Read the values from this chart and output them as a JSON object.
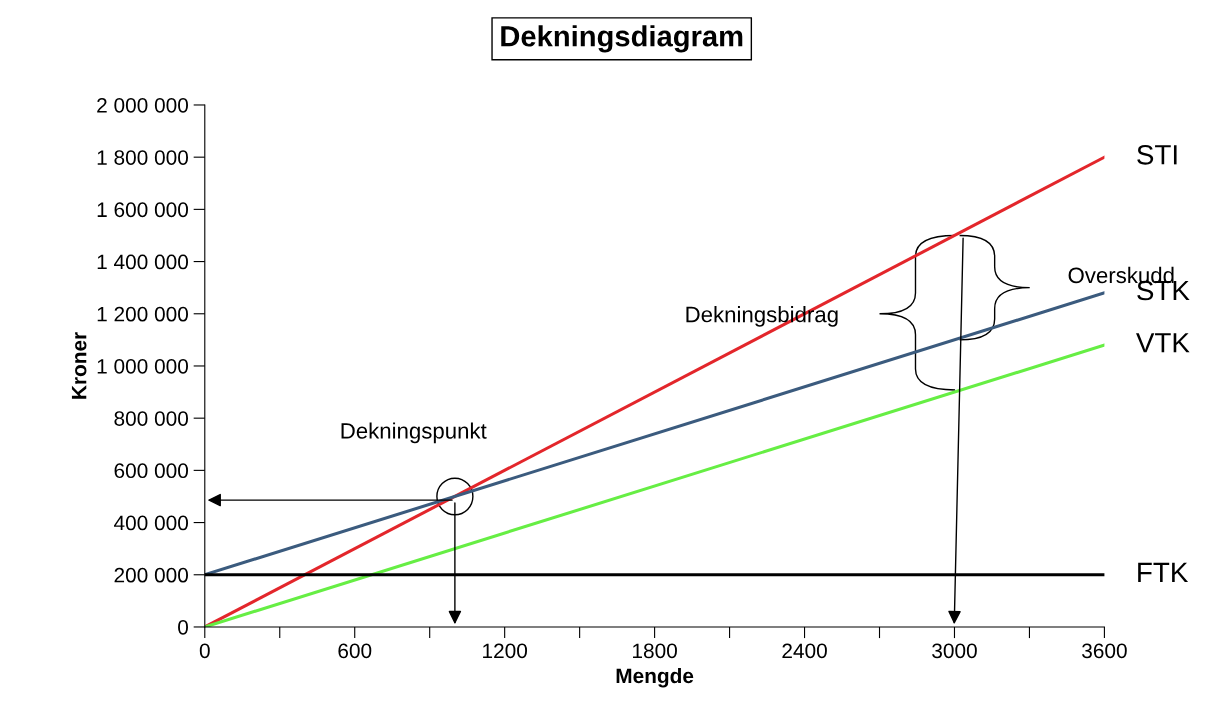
{
  "chart_data": {
    "type": "line",
    "title": "Dekningsdiagram",
    "xlabel": "Mengde",
    "ylabel": "Kroner",
    "x": [
      0,
      3600
    ],
    "series": [
      {
        "name": "STI",
        "color": "#e3262b",
        "values": [
          0,
          1800000
        ]
      },
      {
        "name": "STK",
        "color": "#3b5b7e",
        "values": [
          200000,
          1280000
        ]
      },
      {
        "name": "VTK",
        "color": "#66ee44",
        "values": [
          0,
          1080000
        ]
      },
      {
        "name": "FTK",
        "color": "#000000",
        "values": [
          200000,
          200000
        ]
      }
    ],
    "xlim": [
      0,
      3600
    ],
    "xticks": [
      0,
      {
        "value": 300,
        "label": null
      },
      600,
      {
        "value": 900,
        "label": null
      },
      1200,
      {
        "value": 1500,
        "label": null
      },
      1800,
      {
        "value": 2100,
        "label": null
      },
      2400,
      {
        "value": 2700,
        "label": null
      },
      3000,
      {
        "value": 3300,
        "label": null
      },
      3600
    ],
    "ylim": [
      0,
      2000000
    ],
    "yticks": [
      {
        "value": 0,
        "label": "0"
      },
      {
        "value": 200000,
        "label": "200 000"
      },
      {
        "value": 400000,
        "label": "400 000"
      },
      {
        "value": 600000,
        "label": "600 000"
      },
      {
        "value": 800000,
        "label": "800 000"
      },
      {
        "value": 1000000,
        "label": "1 000 000"
      },
      {
        "value": 1200000,
        "label": "1 200 000"
      },
      {
        "value": 1400000,
        "label": "1 400 000"
      },
      {
        "value": 1600000,
        "label": "1 600 000"
      },
      {
        "value": 1800000,
        "label": "1 800 000"
      },
      {
        "value": 2000000,
        "label": "2 000 000"
      }
    ],
    "annotations": [
      "Dekningspunkt",
      "Dekningsbidrag",
      "Overskudd"
    ],
    "grid": false,
    "legend": false,
    "marker": "none",
    "line_style": "solid"
  }
}
